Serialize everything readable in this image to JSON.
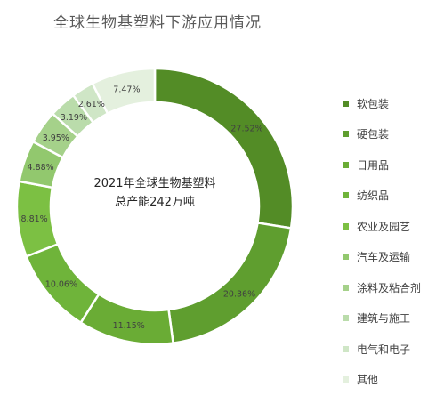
{
  "chart_data": {
    "type": "pie",
    "title": "全球生物基塑料下游应用情况",
    "center_text": [
      "2021年全球生物基塑料",
      "总产能242万吨"
    ],
    "legend_position": "right",
    "categories": [
      "软包装",
      "硬包装",
      "日用品",
      "纺织品",
      "农业及园艺",
      "汽车及运输",
      "涂料及粘合剂",
      "建筑与施工",
      "电气和电子",
      "其他"
    ],
    "values": [
      27.52,
      20.36,
      11.15,
      10.06,
      8.81,
      4.88,
      3.95,
      3.19,
      2.61,
      7.47
    ],
    "labels": [
      "27.52%",
      "20.36%",
      "11.15%",
      "10.06%",
      "8.81%",
      "4.88%",
      "3.95%",
      "3.19%",
      "2.61%",
      "7.47%"
    ],
    "colors": [
      "#538c26",
      "#5f9e2f",
      "#6aac35",
      "#6fb43a",
      "#7cc043",
      "#92c86e",
      "#a5d18a",
      "#badcab",
      "#cfe6c6",
      "#e4f0de"
    ]
  }
}
